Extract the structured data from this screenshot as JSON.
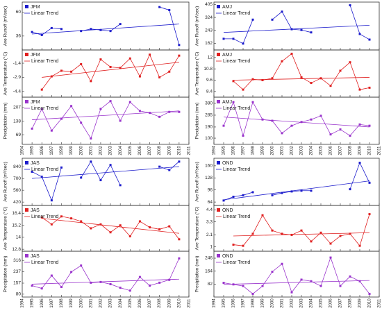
{
  "chart_data": [
    {
      "type": "line",
      "ylabel": "Ave Runoff (m³/sec)",
      "x": [
        1995,
        1996,
        1997,
        1998,
        1999,
        2000,
        2001,
        2002,
        2003,
        2004,
        2005,
        2006,
        2007,
        2008,
        2009,
        2010
      ],
      "series": [
        {
          "name": "JFM",
          "color": "#1c1ccc",
          "values": [
            40,
            37,
            44,
            43,
            null,
            41,
            43,
            42,
            41,
            48,
            null,
            null,
            null,
            65,
            62,
            27
          ]
        }
      ],
      "trend": {
        "name": "Linear Trend",
        "x": [
          1995,
          2010
        ],
        "values": [
          38,
          48
        ]
      },
      "xlim": [
        1994,
        2011
      ],
      "xticks": [
        1994,
        1995,
        1996,
        1997,
        1998,
        1999,
        2000,
        2001,
        2002,
        2003,
        2004,
        2005,
        2006,
        2007,
        2008,
        2009,
        2010,
        2011
      ],
      "ylim": [
        22,
        70
      ],
      "yticks": [
        36,
        60
      ]
    },
    {
      "type": "line",
      "ylabel": "Ave Temperature (°C)",
      "x": [
        1995,
        1996,
        1997,
        1998,
        1999,
        2000,
        2001,
        2002,
        2003,
        2004,
        2005,
        2006,
        2007,
        2008,
        2009,
        2010
      ],
      "series": [
        {
          "name": "JFM",
          "color": "#e02020",
          "values": [
            null,
            -4.2,
            -2.8,
            -2.2,
            -2.3,
            -1.5,
            -3.3,
            -1,
            -1.8,
            -1.9,
            -0.9,
            -2.8,
            -0.5,
            -2.9,
            -2.3,
            -0.6
          ]
        }
      ],
      "trend": {
        "name": "Linear Trend",
        "x": [
          1996,
          2010
        ],
        "values": [
          -2.9,
          -1.3
        ]
      },
      "xlim": [
        1994,
        2011
      ],
      "xticks": [
        1994,
        1995,
        1996,
        1997,
        1998,
        1999,
        2000,
        2001,
        2002,
        2003,
        2004,
        2005,
        2006,
        2007,
        2008,
        2009,
        2010,
        2011
      ],
      "ylim": [
        -5,
        0
      ],
      "yticks": [
        -4.4,
        -2.9,
        -1.4
      ]
    },
    {
      "type": "line",
      "ylabel": "Precipitation (mm)",
      "x": [
        1995,
        1996,
        1997,
        1998,
        1999,
        2000,
        2001,
        2002,
        2003,
        2004,
        2005,
        2006,
        2007,
        2008,
        2009,
        2010
      ],
      "series": [
        {
          "name": "JFM",
          "color": "#9933cc",
          "values": [
            100,
            200,
            90,
            150,
            215,
            130,
            50,
            200,
            240,
            140,
            235,
            190,
            180,
            160,
            185,
            185
          ]
        }
      ],
      "trend": {
        "name": "Linear Trend",
        "x": [
          1995,
          2010
        ],
        "values": [
          145,
          190
        ]
      },
      "xlim": [
        1994,
        2011
      ],
      "xticks": [
        1994,
        1995,
        1996,
        1997,
        1998,
        1999,
        2000,
        2001,
        2002,
        2003,
        2004,
        2005,
        2006,
        2007,
        2008,
        2009,
        2010,
        2011
      ],
      "ylim": [
        20,
        260
      ],
      "yticks": [
        69,
        138,
        207
      ]
    },
    {
      "type": "line",
      "ylabel": "Ave Runoff (m³/sec)",
      "x": [
        1995,
        1996,
        1997,
        1998,
        1999,
        2000,
        2001,
        2002,
        2003,
        2004,
        2005,
        2006,
        2007,
        2008,
        2009,
        2010
      ],
      "series": [
        {
          "name": "AMJ",
          "color": "#1c1ccc",
          "values": [
            190,
            190,
            160,
            310,
            null,
            310,
            360,
            250,
            245,
            230,
            null,
            null,
            null,
            400,
            220,
            185
          ]
        }
      ],
      "trend": {
        "name": "Linear Trend",
        "x": [
          1995,
          2010
        ],
        "values": [
          230,
          275
        ]
      },
      "xlim": [
        1994,
        2011
      ],
      "xticks": [
        1994,
        1995,
        1996,
        1997,
        1998,
        1999,
        2000,
        2001,
        2002,
        2003,
        2004,
        2005,
        2006,
        2007,
        2008,
        2009,
        2010,
        2011
      ],
      "ylim": [
        120,
        420
      ],
      "yticks": [
        162,
        243,
        324,
        405
      ]
    },
    {
      "type": "line",
      "ylabel": "Ave Temperature (°C)",
      "x": [
        1995,
        1996,
        1997,
        1998,
        1999,
        2000,
        2001,
        2002,
        2003,
        2004,
        2005,
        2006,
        2007,
        2008,
        2009,
        2010
      ],
      "series": [
        {
          "name": "AMJ",
          "color": "#e02020",
          "values": [
            null,
            9.5,
            8.6,
            9.7,
            9.6,
            9.8,
            11.6,
            12.4,
            9.9,
            9.3,
            9.8,
            9.0,
            10.6,
            11.5,
            8.6,
            8.8
          ]
        }
      ],
      "trend": {
        "name": "Linear Trend",
        "x": [
          1996,
          2010
        ],
        "values": [
          9.6,
          9.9
        ]
      },
      "xlim": [
        1994,
        2011
      ],
      "xticks": [
        1994,
        1995,
        1996,
        1997,
        1998,
        1999,
        2000,
        2001,
        2002,
        2003,
        2004,
        2005,
        2006,
        2007,
        2008,
        2009,
        2010,
        2011
      ],
      "ylim": [
        7.8,
        12.8
      ],
      "yticks": [
        8.4,
        9.6,
        10.8,
        12.0
      ]
    },
    {
      "type": "line",
      "ylabel": "Precipitation (mm)",
      "x": [
        1995,
        1996,
        1997,
        1998,
        1999,
        2000,
        2001,
        2002,
        2003,
        2004,
        2005,
        2006,
        2007,
        2008,
        2009,
        2010
      ],
      "series": [
        {
          "name": "AMJ",
          "color": "#9933cc",
          "values": [
            200,
            390,
            120,
            390,
            250,
            240,
            140,
            200,
            230,
            250,
            280,
            130,
            170,
            120,
            210,
            200
          ]
        }
      ],
      "trend": {
        "name": "Linear Trend",
        "x": [
          1995,
          2010
        ],
        "values": [
          270,
          190
        ]
      },
      "xlim": [
        1994,
        2011
      ],
      "xticks": [
        1994,
        1995,
        1996,
        1997,
        1998,
        1999,
        2000,
        2001,
        2002,
        2003,
        2004,
        2005,
        2006,
        2007,
        2008,
        2009,
        2010,
        2011
      ],
      "ylim": [
        50,
        430
      ],
      "yticks": [
        100,
        190,
        285,
        380
      ]
    },
    {
      "type": "line",
      "ylabel": "Ave Runoff (m³/sec)",
      "x": [
        1995,
        1996,
        1997,
        1998,
        1999,
        2000,
        2001,
        2002,
        2003,
        2004,
        2005,
        2006,
        2007,
        2008,
        2009,
        2010
      ],
      "series": [
        {
          "name": "JAS",
          "color": "#1c1ccc",
          "values": [
            780,
            720,
            440,
            830,
            null,
            710,
            900,
            680,
            860,
            620,
            null,
            null,
            null,
            840,
            800,
            900
          ]
        }
      ],
      "trend": {
        "name": "Linear Trend",
        "x": [
          1995,
          2010
        ],
        "values": [
          700,
          840
        ]
      },
      "xlim": [
        1994,
        2011
      ],
      "xticks": [
        1994,
        1995,
        1996,
        1997,
        1998,
        1999,
        2000,
        2001,
        2002,
        2003,
        2004,
        2005,
        2006,
        2007,
        2008,
        2009,
        2010,
        2011
      ],
      "ylim": [
        380,
        940
      ],
      "yticks": [
        420,
        560,
        700,
        840
      ]
    },
    {
      "type": "line",
      "ylabel": "Ave Temperature (°C)",
      "x": [
        1995,
        1996,
        1997,
        1998,
        1999,
        2000,
        2001,
        2002,
        2003,
        2004,
        2005,
        2006,
        2007,
        2008,
        2009,
        2010
      ],
      "series": [
        {
          "name": "JAS",
          "color": "#e02020",
          "values": [
            null,
            16.0,
            15.3,
            16.1,
            15.9,
            15.6,
            14.9,
            15.3,
            14.5,
            15.2,
            14.1,
            15.6,
            15.0,
            14.8,
            15.1,
            13.8
          ]
        }
      ],
      "trend": {
        "name": "Linear Trend",
        "x": [
          1996,
          2010
        ],
        "values": [
          15.9,
          14.4
        ]
      },
      "xlim": [
        1994,
        2011
      ],
      "xticks": [
        1994,
        1995,
        1996,
        1997,
        1998,
        1999,
        2000,
        2001,
        2002,
        2003,
        2004,
        2005,
        2006,
        2007,
        2008,
        2009,
        2010,
        2011
      ],
      "ylim": [
        12.6,
        17.2
      ],
      "yticks": [
        12.8,
        14.0,
        15.2,
        16.4
      ]
    },
    {
      "type": "line",
      "ylabel": "Precipitation (mm)",
      "x": [
        1995,
        1996,
        1997,
        1998,
        1999,
        2000,
        2001,
        2002,
        2003,
        2004,
        2005,
        2006,
        2007,
        2008,
        2009,
        2010
      ],
      "series": [
        {
          "name": "JAS",
          "color": "#9933cc",
          "values": [
            140,
            120,
            210,
            130,
            235,
            280,
            160,
            165,
            150,
            125,
            105,
            200,
            140,
            160,
            180,
            330
          ]
        }
      ],
      "trend": {
        "name": "Linear Trend",
        "x": [
          1995,
          2010
        ],
        "values": [
          150,
          185
        ]
      },
      "xlim": [
        1994,
        2011
      ],
      "xticks": [
        1994,
        1995,
        1996,
        1997,
        1998,
        1999,
        2000,
        2001,
        2002,
        2003,
        2004,
        2005,
        2006,
        2007,
        2008,
        2009,
        2010,
        2011
      ],
      "ylim": [
        60,
        380
      ],
      "yticks": [
        80,
        157,
        237,
        316
      ]
    },
    {
      "type": "line",
      "ylabel": "Ave Runoff (m³/sec)",
      "x": [
        1995,
        1996,
        1997,
        1998,
        1999,
        2000,
        2001,
        2002,
        2003,
        2004,
        2005,
        2006,
        2007,
        2008,
        2009,
        2010
      ],
      "series": [
        {
          "name": "OND",
          "color": "#1c1ccc",
          "values": [
            68,
            78,
            82,
            90,
            null,
            82,
            88,
            92,
            94,
            94,
            null,
            null,
            null,
            98,
            168,
            115
          ]
        }
      ],
      "trend": {
        "name": "Linear Trend",
        "x": [
          1995,
          2010
        ],
        "values": [
          70,
          120
        ]
      },
      "xlim": [
        1994,
        2011
      ],
      "xticks": [
        1994,
        1995,
        1996,
        1997,
        1998,
        1999,
        2000,
        2001,
        2002,
        2003,
        2004,
        2005,
        2006,
        2007,
        2008,
        2009,
        2010,
        2011
      ],
      "ylim": [
        55,
        180
      ],
      "yticks": [
        64,
        96,
        128,
        160
      ]
    },
    {
      "type": "line",
      "ylabel": "Ave Temperature (°C)",
      "x": [
        1995,
        1996,
        1997,
        1998,
        1999,
        2000,
        2001,
        2002,
        2003,
        2004,
        2005,
        2006,
        2007,
        2008,
        2009,
        2010
      ],
      "series": [
        {
          "name": "OND",
          "color": "#e02020",
          "values": [
            null,
            1.2,
            1.1,
            2.2,
            3.9,
            2.5,
            2.2,
            2.1,
            2.5,
            1.5,
            2.3,
            1.3,
            2.0,
            2.2,
            1.1,
            4.0
          ]
        }
      ],
      "trend": {
        "name": "Linear Trend",
        "x": [
          1996,
          2010
        ],
        "values": [
          2.0,
          2.3
        ]
      },
      "xlim": [
        1994,
        2011
      ],
      "xticks": [
        1994,
        1995,
        1996,
        1997,
        1998,
        1999,
        2000,
        2001,
        2002,
        2003,
        2004,
        2005,
        2006,
        2007,
        2008,
        2009,
        2010,
        2011
      ],
      "ylim": [
        0.6,
        4.8
      ],
      "yticks": [
        1.0,
        2.1,
        3.3,
        4.4
      ]
    },
    {
      "type": "line",
      "ylabel": "Precipitation (mm)",
      "x": [
        1995,
        1996,
        1997,
        1998,
        1999,
        2000,
        2001,
        2002,
        2003,
        2004,
        2005,
        2006,
        2007,
        2008,
        2009,
        2010
      ],
      "series": [
        {
          "name": "OND",
          "color": "#9933cc",
          "values": [
            90,
            80,
            70,
            20,
            70,
            160,
            210,
            30,
            110,
            100,
            70,
            250,
            70,
            130,
            100,
            20
          ]
        }
      ],
      "trend": {
        "name": "Linear Trend",
        "x": [
          1995,
          2010
        ],
        "values": [
          80,
          105
        ]
      },
      "xlim": [
        1994,
        2011
      ],
      "xticks": [
        1994,
        1995,
        1996,
        1997,
        1998,
        1999,
        2000,
        2001,
        2002,
        2003,
        2004,
        2005,
        2006,
        2007,
        2008,
        2009,
        2010,
        2011
      ],
      "ylim": [
        0,
        290
      ],
      "yticks": [
        82,
        164,
        246
      ]
    }
  ]
}
